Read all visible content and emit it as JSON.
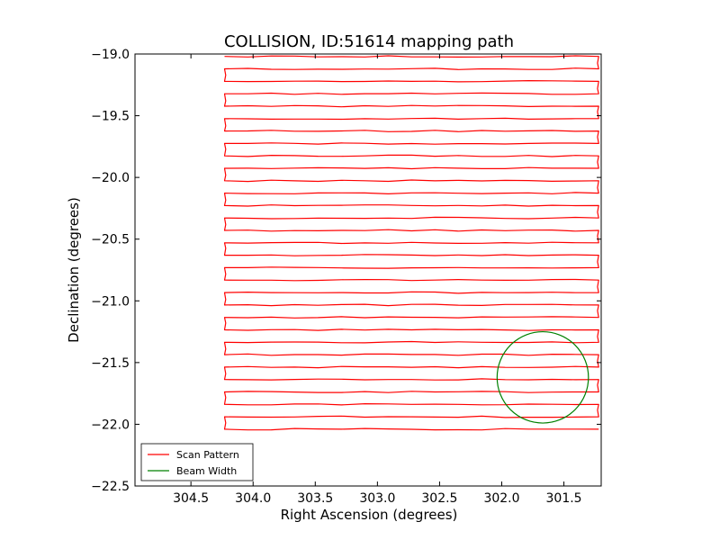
{
  "chart_data": {
    "type": "line",
    "title": "COLLISION, ID:51614 mapping path",
    "xlabel": "Right Ascension (degrees)",
    "ylabel": "Declination (degrees)",
    "xlim": [
      304.95,
      301.2
    ],
    "ylim": [
      -22.5,
      -19.0
    ],
    "x_inverted": true,
    "grid": false,
    "legend_placement": "lower-left",
    "x_ticks": [
      304.5,
      304.0,
      303.5,
      303.0,
      302.5,
      302.0,
      301.5
    ],
    "x_tick_labels": [
      "304.5",
      "304.0",
      "303.5",
      "303.0",
      "302.5",
      "302.0",
      "301.5"
    ],
    "y_ticks": [
      -19.0,
      -19.5,
      -20.0,
      -20.5,
      -21.0,
      -21.5,
      -22.0,
      -22.5
    ],
    "y_tick_labels": [
      "−19.0",
      "−19.5",
      "−20.0",
      "−20.5",
      "−21.0",
      "−21.5",
      "−22.0",
      "−22.5"
    ],
    "series": [
      {
        "name": "Scan Pattern",
        "color": "#ff0000",
        "scan_ra_range": [
          304.23,
          301.22
        ],
        "scan_dec_start": -19.02,
        "scan_dec_end": -22.04,
        "scan_line_spacing": 0.1,
        "scan_lines": 31
      },
      {
        "name": "Beam Width",
        "color": "#008000",
        "shape": "circle",
        "center": [
          301.67,
          -21.62
        ],
        "radius_dec_degrees": 0.37
      }
    ]
  }
}
